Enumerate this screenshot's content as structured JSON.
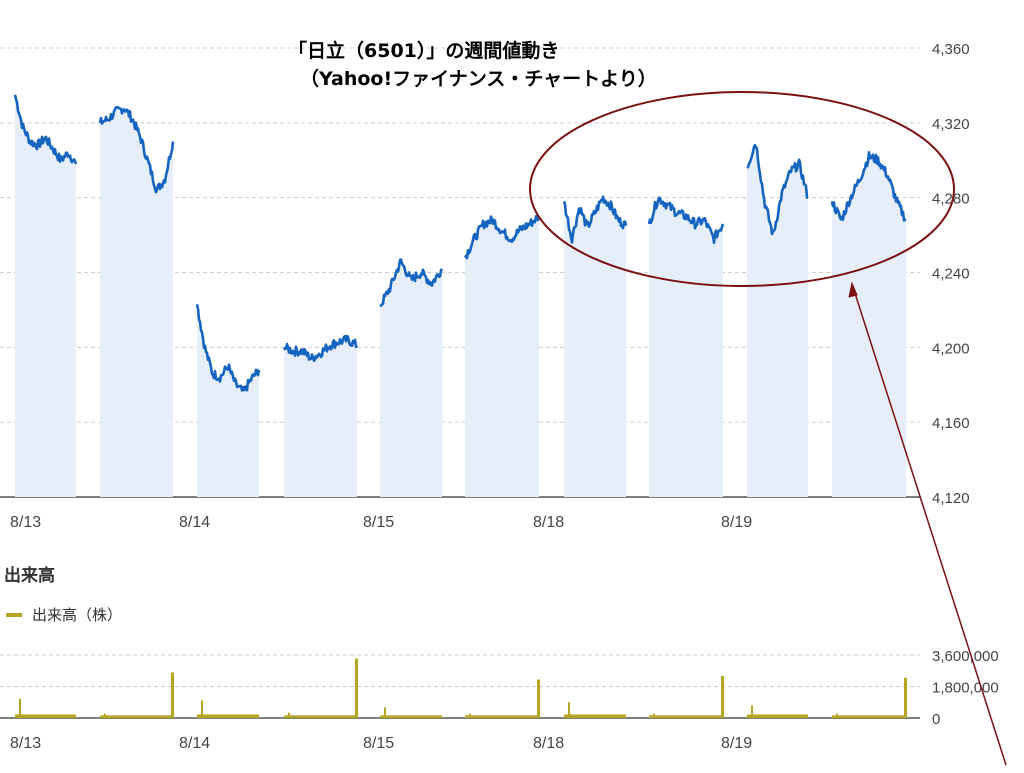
{
  "title": "「日立（6501）」の週間値動き",
  "subtitle": "（Yahoo!ファイナンス・チャートより）",
  "volume_heading": "出来高",
  "volume_legend": "出来高（株）",
  "colors": {
    "price_line": "#1565c0",
    "price_fill": "#e6eff9",
    "volume": "#b5a520",
    "annotation": "#7a1010",
    "grid": "#cfcfcf",
    "axis_text": "#444444"
  },
  "chart_data": [
    {
      "type": "line",
      "title": "「日立（6501）」の週間値動き",
      "y_ticks": [
        "4,360",
        "4,320",
        "4,280",
        "4,240",
        "4,200",
        "4,160",
        "4,120"
      ],
      "y_tick_values": [
        4360,
        4320,
        4280,
        4240,
        4200,
        4160,
        4120
      ],
      "ylim": [
        4120,
        4360
      ],
      "x_tick_labels": [
        "8/13",
        "8/14",
        "8/15",
        "8/18",
        "8/19"
      ],
      "grid": "horizontal dashed",
      "annotation": "ellipse highlighting 8/18–8/19 prices with an arrow",
      "sessions": [
        {
          "values": [
            4335,
            4318,
            4310,
            4308,
            4312,
            4306,
            4300,
            4304,
            4298
          ]
        },
        {
          "values": [
            4320,
            4322,
            4326,
            4328,
            4322,
            4312,
            4298,
            4284,
            4290,
            4310
          ]
        },
        {
          "values": [
            4223,
            4200,
            4186,
            4184,
            4190,
            4180,
            4176,
            4183,
            4188
          ]
        },
        {
          "values": [
            4200,
            4198,
            4198,
            4194,
            4197,
            4201,
            4203,
            4204,
            4201
          ]
        },
        {
          "values": [
            4222,
            4232,
            4246,
            4236,
            4240,
            4234,
            4242
          ]
        },
        {
          "values": [
            4248,
            4258,
            4266,
            4268,
            4262,
            4258,
            4263,
            4266,
            4270
          ]
        },
        {
          "values": [
            4278,
            4258,
            4275,
            4264,
            4272,
            4280,
            4276,
            4268,
            4265
          ]
        },
        {
          "values": [
            4266,
            4280,
            4276,
            4272,
            4270,
            4266,
            4268,
            4258,
            4266
          ]
        },
        {
          "values": [
            4296,
            4310,
            4278,
            4260,
            4282,
            4294,
            4298,
            4280
          ]
        },
        {
          "values": [
            4278,
            4268,
            4280,
            4290,
            4302,
            4300,
            4292,
            4278,
            4268
          ]
        }
      ]
    },
    {
      "type": "bar",
      "title": "出来高",
      "legend": "出来高（株）",
      "y_ticks": [
        "3,600,000",
        "1,800,000",
        "0"
      ],
      "y_tick_values": [
        3600000,
        1800000,
        0
      ],
      "ylim": [
        0,
        3600000
      ],
      "x_tick_labels": [
        "8/13",
        "8/14",
        "8/15",
        "8/18",
        "8/19"
      ],
      "sessions": [
        {
          "open": 1100000,
          "base": 200000,
          "close": 0
        },
        {
          "open": 250000,
          "base": 150000,
          "close": 2600000
        },
        {
          "open": 1000000,
          "base": 200000,
          "close": 0
        },
        {
          "open": 300000,
          "base": 150000,
          "close": 3400000
        },
        {
          "open": 600000,
          "base": 150000,
          "close": 0
        },
        {
          "open": 250000,
          "base": 150000,
          "close": 2200000
        },
        {
          "open": 900000,
          "base": 200000,
          "close": 0
        },
        {
          "open": 250000,
          "base": 150000,
          "close": 2400000
        },
        {
          "open": 700000,
          "base": 200000,
          "close": 0
        },
        {
          "open": 250000,
          "base": 150000,
          "close": 2300000
        }
      ]
    }
  ]
}
